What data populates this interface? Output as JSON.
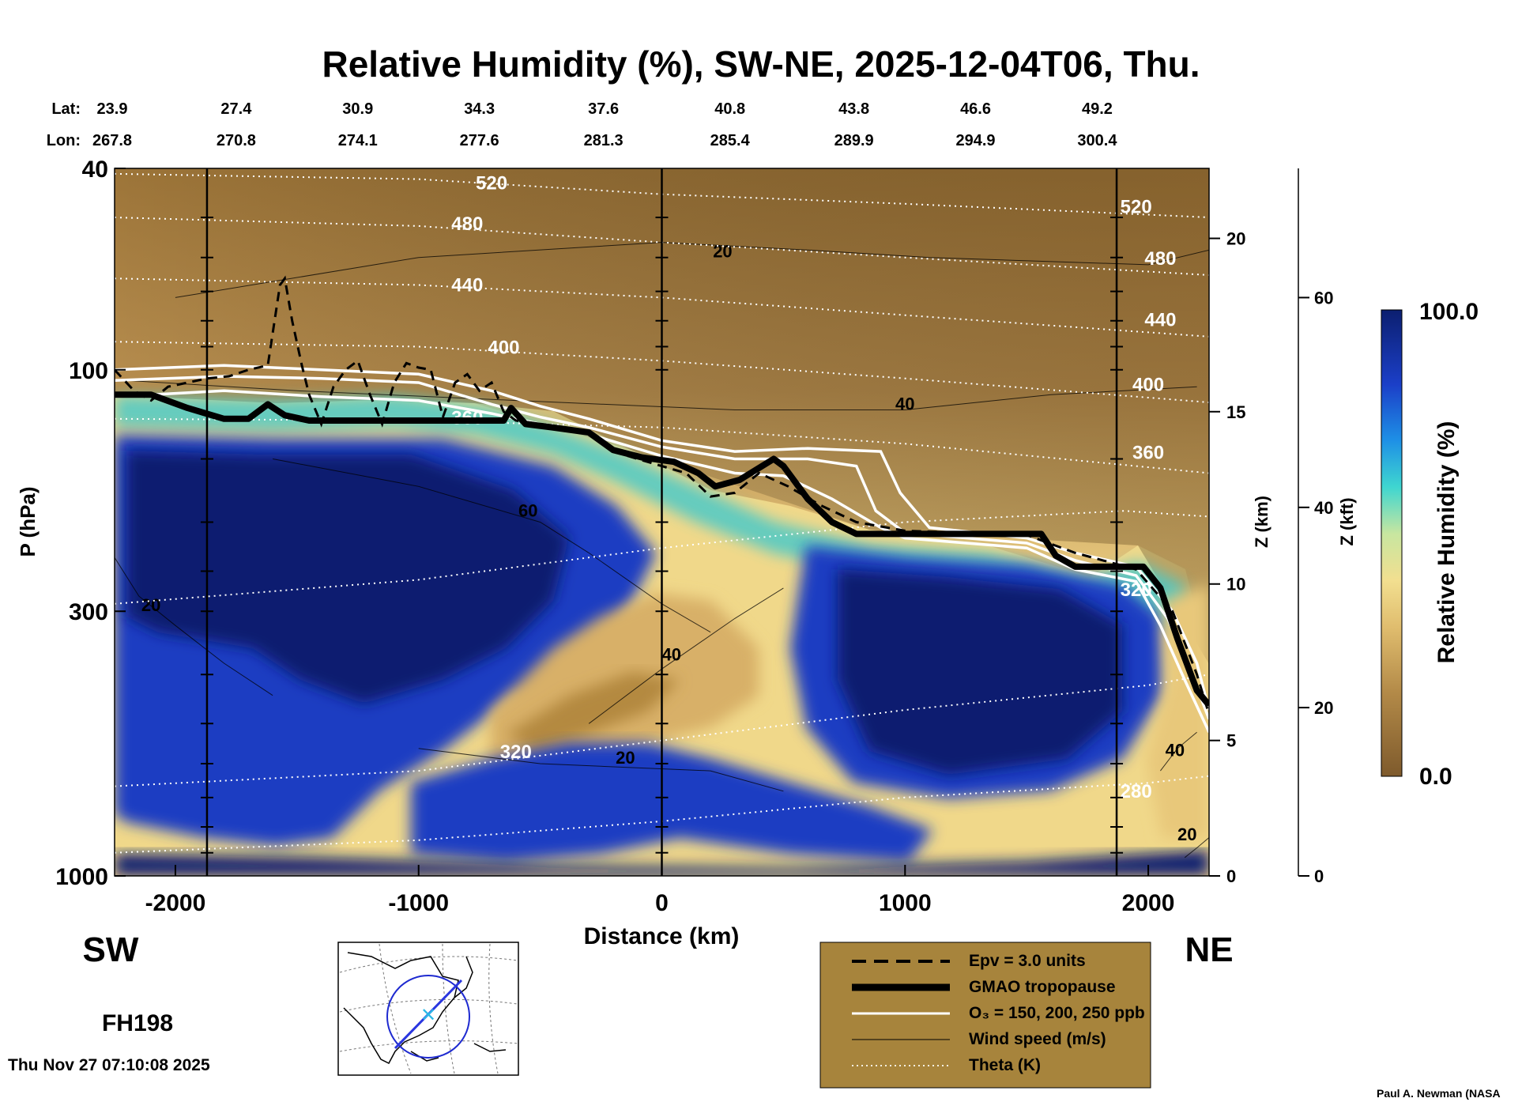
{
  "chart_data": {
    "type": "heatmap",
    "title": "Relative Humidity (%), SW-NE, 2025-12-04T06, Thu.",
    "xlabel": "Distance (km)",
    "ylabel": "P (hPa)",
    "y2label": "Z (km)",
    "y3label": "Z (kft)",
    "colorbar_label": "Relative Humidity (%)",
    "colorbar_range": [
      0.0,
      100.0
    ],
    "colorbar_max_label": "100.0",
    "colorbar_min_label": "0.0",
    "colors": {
      "dry": "#7e5a2c",
      "mid": "#f2d98a",
      "wet": "#1b34b4",
      "deep": "#0c1f70"
    },
    "xlim": [
      -2250,
      2250
    ],
    "ylim_hpa": [
      1000,
      40
    ],
    "log_pressure": true,
    "x_ticks": [
      {
        "value": -2000,
        "label": "-2000"
      },
      {
        "value": -1000,
        "label": "-1000"
      },
      {
        "value": 0,
        "label": "0"
      },
      {
        "value": 1000,
        "label": "1000"
      },
      {
        "value": 2000,
        "label": "2000"
      }
    ],
    "y_ticks": [
      {
        "value": 40,
        "label": "40"
      },
      {
        "value": 100,
        "label": "100"
      },
      {
        "value": 300,
        "label": "300"
      },
      {
        "value": 1000,
        "label": "1000"
      }
    ],
    "km_ticks": [
      {
        "value": 0,
        "p": 1000,
        "label": "0"
      },
      {
        "value": 5,
        "p": 540,
        "label": "5"
      },
      {
        "value": 10,
        "p": 265,
        "label": "10"
      },
      {
        "value": 15,
        "p": 121,
        "label": "15"
      },
      {
        "value": 20,
        "p": 55,
        "label": "20"
      }
    ],
    "kft_ticks": [
      {
        "value": 0,
        "p": 1000,
        "label": "0"
      },
      {
        "value": 20,
        "p": 465,
        "label": "20"
      },
      {
        "value": 40,
        "p": 187,
        "label": "40"
      },
      {
        "value": 60,
        "p": 72,
        "label": "60"
      }
    ],
    "lat_label": "Lat:",
    "lon_label": "Lon:",
    "lat_lon_columns": [
      {
        "x": -2250,
        "lat": "23.9",
        "lon": "267.8"
      },
      {
        "x": -1750,
        "lat": "27.4",
        "lon": "270.8"
      },
      {
        "x": -1250,
        "lat": "30.9",
        "lon": "274.1"
      },
      {
        "x": -750,
        "lat": "34.3",
        "lon": "277.6"
      },
      {
        "x": -240,
        "lat": "37.6",
        "lon": "281.3"
      },
      {
        "x": 280,
        "lat": "40.8",
        "lon": "285.4"
      },
      {
        "x": 790,
        "lat": "43.8",
        "lon": "289.9"
      },
      {
        "x": 1290,
        "lat": "46.6",
        "lon": "294.9"
      },
      {
        "x": 1790,
        "lat": "49.2",
        "lon": "300.4"
      }
    ],
    "vertical_lines_x": [
      -1870,
      0,
      1870
    ],
    "tropopause": [
      [
        -2250,
        112
      ],
      [
        -2100,
        112
      ],
      [
        -1950,
        119
      ],
      [
        -1800,
        125
      ],
      [
        -1700,
        125
      ],
      [
        -1620,
        117
      ],
      [
        -1550,
        123
      ],
      [
        -1450,
        126
      ],
      [
        -1200,
        126
      ],
      [
        -900,
        126
      ],
      [
        -650,
        126
      ],
      [
        -620,
        119
      ],
      [
        -560,
        128
      ],
      [
        -450,
        130
      ],
      [
        -300,
        133
      ],
      [
        -200,
        144
      ],
      [
        -80,
        149
      ],
      [
        50,
        152
      ],
      [
        150,
        160
      ],
      [
        220,
        170
      ],
      [
        320,
        165
      ],
      [
        460,
        150
      ],
      [
        500,
        155
      ],
      [
        600,
        180
      ],
      [
        700,
        200
      ],
      [
        800,
        211
      ],
      [
        1000,
        211
      ],
      [
        1200,
        211
      ],
      [
        1560,
        211
      ],
      [
        1620,
        233
      ],
      [
        1700,
        245
      ],
      [
        1900,
        245
      ],
      [
        1980,
        245
      ],
      [
        2050,
        270
      ],
      [
        2120,
        340
      ],
      [
        2200,
        430
      ],
      [
        2250,
        460
      ]
    ],
    "ozone_contours": [
      [
        [
          -2250,
          100
        ],
        [
          -1800,
          98
        ],
        [
          -1400,
          100
        ],
        [
          -1000,
          102
        ],
        [
          -700,
          110
        ],
        [
          -500,
          118
        ],
        [
          -300,
          125
        ],
        [
          0,
          138
        ],
        [
          300,
          145
        ],
        [
          600,
          143
        ],
        [
          900,
          145
        ],
        [
          980,
          175
        ],
        [
          1100,
          205
        ],
        [
          1500,
          215
        ],
        [
          1700,
          230
        ],
        [
          1950,
          245
        ],
        [
          2100,
          300
        ],
        [
          2200,
          380
        ],
        [
          2250,
          470
        ]
      ],
      [
        [
          -2250,
          105
        ],
        [
          -1800,
          103
        ],
        [
          -1400,
          104
        ],
        [
          -1000,
          106
        ],
        [
          -700,
          117
        ],
        [
          -500,
          124
        ],
        [
          -300,
          130
        ],
        [
          0,
          142
        ],
        [
          300,
          150
        ],
        [
          600,
          150
        ],
        [
          800,
          155
        ],
        [
          880,
          190
        ],
        [
          1000,
          210
        ],
        [
          1500,
          220
        ],
        [
          1700,
          238
        ],
        [
          1950,
          255
        ],
        [
          2080,
          310
        ],
        [
          2180,
          400
        ],
        [
          2250,
          490
        ]
      ],
      [
        [
          -2250,
          113
        ],
        [
          -1800,
          110
        ],
        [
          -1400,
          113
        ],
        [
          -1000,
          115
        ],
        [
          -700,
          122
        ],
        [
          -500,
          128
        ],
        [
          -300,
          134
        ],
        [
          0,
          148
        ],
        [
          300,
          160
        ],
        [
          500,
          162
        ],
        [
          700,
          180
        ],
        [
          900,
          205
        ],
        [
          1000,
          215
        ],
        [
          1500,
          225
        ],
        [
          1700,
          248
        ],
        [
          1950,
          262
        ],
        [
          2050,
          320
        ],
        [
          2150,
          410
        ],
        [
          2250,
          520
        ]
      ]
    ],
    "epv_contour": [
      [
        -2250,
        100
      ],
      [
        -2170,
        110
      ],
      [
        -2100,
        115
      ],
      [
        -2030,
        108
      ],
      [
        -1950,
        106
      ],
      [
        -1870,
        104
      ],
      [
        -1780,
        103
      ],
      [
        -1700,
        100
      ],
      [
        -1620,
        98
      ],
      [
        -1570,
        68
      ],
      [
        -1550,
        66
      ],
      [
        -1520,
        80
      ],
      [
        -1480,
        98
      ],
      [
        -1450,
        112
      ],
      [
        -1400,
        128
      ],
      [
        -1350,
        108
      ],
      [
        -1300,
        100
      ],
      [
        -1250,
        96
      ],
      [
        -1200,
        112
      ],
      [
        -1150,
        128
      ],
      [
        -1100,
        106
      ],
      [
        -1050,
        97
      ],
      [
        -1000,
        99
      ],
      [
        -950,
        100
      ],
      [
        -900,
        124
      ],
      [
        -850,
        106
      ],
      [
        -800,
        102
      ],
      [
        -750,
        110
      ],
      [
        -700,
        106
      ],
      [
        -650,
        121
      ],
      [
        -600,
        126
      ],
      [
        -400,
        130
      ],
      [
        -300,
        133
      ],
      [
        -200,
        145
      ],
      [
        -100,
        150
      ],
      [
        0,
        155
      ],
      [
        100,
        160
      ],
      [
        200,
        178
      ],
      [
        300,
        175
      ],
      [
        400,
        160
      ],
      [
        520,
        170
      ],
      [
        650,
        185
      ],
      [
        800,
        200
      ],
      [
        1000,
        208
      ],
      [
        1500,
        212
      ],
      [
        1700,
        230
      ],
      [
        1950,
        248
      ],
      [
        2100,
        300
      ],
      [
        2200,
        400
      ],
      [
        2250,
        480
      ]
    ],
    "theta_contours": [
      {
        "label": "520",
        "pts": [
          [
            -2250,
            41
          ],
          [
            -1000,
            42
          ],
          [
            0,
            45
          ],
          [
            1000,
            47
          ],
          [
            2250,
            50
          ]
        ],
        "labels": [
          [
            -700,
            44
          ],
          [
            1950,
            49
          ]
        ]
      },
      {
        "label": "480",
        "pts": [
          [
            -2250,
            50
          ],
          [
            -1000,
            52
          ],
          [
            0,
            56
          ],
          [
            1000,
            60
          ],
          [
            2250,
            65
          ]
        ],
        "labels": [
          [
            -800,
            53
          ],
          [
            2050,
            62
          ]
        ]
      },
      {
        "label": "440",
        "pts": [
          [
            -2250,
            66
          ],
          [
            -1000,
            68
          ],
          [
            0,
            72
          ],
          [
            1000,
            78
          ],
          [
            2250,
            86
          ]
        ],
        "labels": [
          [
            -800,
            70
          ],
          [
            2050,
            82
          ]
        ]
      },
      {
        "label": "400",
        "pts": [
          [
            -2250,
            88
          ],
          [
            -1000,
            90
          ],
          [
            0,
            96
          ],
          [
            1000,
            104
          ],
          [
            2250,
            116
          ]
        ],
        "labels": [
          [
            -650,
            93
          ],
          [
            2000,
            110
          ]
        ]
      },
      {
        "label": "360",
        "pts": [
          [
            -2250,
            125
          ],
          [
            -1000,
            126
          ],
          [
            0,
            130
          ],
          [
            1000,
            140
          ],
          [
            2250,
            160
          ]
        ],
        "labels": [
          [
            -800,
            128
          ],
          [
            2000,
            150
          ]
        ]
      },
      {
        "label": "320",
        "pts": [
          [
            -2250,
            290
          ],
          [
            -1000,
            260
          ],
          [
            0,
            225
          ],
          [
            1000,
            200
          ],
          [
            1900,
            190
          ],
          [
            2250,
            195
          ]
        ],
        "labels": [
          [
            1950,
            280
          ]
        ]
      },
      {
        "label": "320",
        "pts": [
          [
            -2250,
            665
          ],
          [
            -1000,
            620
          ],
          [
            0,
            540
          ],
          [
            1000,
            470
          ],
          [
            2000,
            420
          ],
          [
            2250,
            400
          ]
        ],
        "labels": [
          [
            -600,
            585
          ]
        ]
      },
      {
        "label": "280",
        "pts": [
          [
            -2250,
            900
          ],
          [
            -1000,
            850
          ],
          [
            0,
            780
          ],
          [
            1000,
            700
          ],
          [
            2000,
            655
          ],
          [
            2250,
            635
          ]
        ],
        "labels": [
          [
            1950,
            700
          ]
        ]
      }
    ],
    "wind_contours": [
      {
        "label": "20",
        "pts": [
          [
            -2000,
            72
          ],
          [
            -1000,
            60
          ],
          [
            0,
            56
          ],
          [
            600,
            58
          ],
          [
            1100,
            60
          ],
          [
            2000,
            62
          ],
          [
            2250,
            58
          ]
        ],
        "labels": [
          [
            250,
            60
          ]
        ]
      },
      {
        "label": "40",
        "pts": [
          [
            -2200,
            105
          ],
          [
            -1500,
            110
          ],
          [
            -600,
            115
          ],
          [
            300,
            120
          ],
          [
            1000,
            120
          ],
          [
            1600,
            112
          ],
          [
            2200,
            108
          ]
        ],
        "labels": [
          [
            1000,
            120
          ]
        ]
      },
      {
        "label": "60",
        "pts": [
          [
            -1600,
            150
          ],
          [
            -1000,
            170
          ],
          [
            -500,
            200
          ],
          [
            -300,
            230
          ],
          [
            0,
            290
          ],
          [
            200,
            330
          ]
        ],
        "labels": [
          [
            -550,
            195
          ]
        ]
      },
      {
        "label": "20",
        "pts": [
          [
            -2250,
            235
          ],
          [
            -2150,
            280
          ],
          [
            -2000,
            320
          ],
          [
            -1800,
            380
          ],
          [
            -1600,
            440
          ]
        ],
        "labels": [
          [
            -2100,
            300
          ]
        ]
      },
      {
        "label": "40",
        "pts": [
          [
            -300,
            500
          ],
          [
            0,
            390
          ],
          [
            300,
            310
          ],
          [
            500,
            270
          ]
        ],
        "labels": [
          [
            40,
            375
          ]
        ]
      },
      {
        "label": "20",
        "pts": [
          [
            -1000,
            560
          ],
          [
            -500,
            600
          ],
          [
            -150,
            610
          ],
          [
            200,
            620
          ],
          [
            500,
            680
          ]
        ],
        "labels": [
          [
            -150,
            600
          ]
        ]
      },
      {
        "label": "40",
        "pts": [
          [
            2200,
            520
          ],
          [
            2120,
            560
          ],
          [
            2050,
            620
          ]
        ],
        "labels": [
          [
            2110,
            580
          ]
        ]
      },
      {
        "label": "20",
        "pts": [
          [
            2250,
            840
          ],
          [
            2200,
            880
          ],
          [
            2150,
            920
          ]
        ],
        "labels": [
          [
            2160,
            850
          ]
        ]
      }
    ],
    "sw_label": "SW",
    "ne_label": "NE",
    "forecast_hour": "FH198",
    "timestamp": "Thu Nov 27 07:10:08 2025",
    "credit": "Paul A. Newman (NASA",
    "legend": [
      {
        "style": "dashed",
        "label": "Epv = 3.0 units"
      },
      {
        "style": "thick",
        "label": "GMAO tropopause"
      },
      {
        "style": "white",
        "label": "O₃ = 150, 200, 250 ppb"
      },
      {
        "style": "thin",
        "label": "Wind speed (m/s)"
      },
      {
        "style": "dotted",
        "label": "Theta (K)"
      }
    ],
    "legend_position": "bottom-center"
  }
}
